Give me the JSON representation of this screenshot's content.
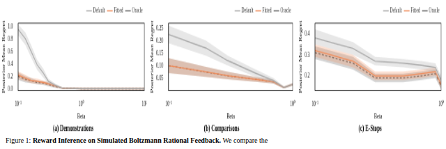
{
  "caption": {
    "prefix": "Figure 1:",
    "title": "Reward Inference on Simulated Boltzmann Rational Feedback.",
    "text": "We compare the"
  },
  "chart_data": [
    {
      "type": "line",
      "title": "(a) Demonstrations",
      "x_label": "Beta",
      "y_label": "Posterior Mean Regret",
      "log": "x",
      "grid": false,
      "legend": "top right",
      "xlim": [
        0.1,
        10
      ],
      "xticks": [
        {
          "value": 0.1,
          "label": "10⁻¹"
        },
        {
          "value": 1,
          "label": "10⁰"
        },
        {
          "value": 10,
          "label": "10¹"
        }
      ],
      "ylim": [
        -0.03,
        1.05
      ],
      "yticks": [
        {
          "value": 0,
          "label": "0.0"
        },
        {
          "value": 0.2,
          "label": "0.2"
        },
        {
          "value": 0.4,
          "label": "0.4"
        },
        {
          "value": 0.6,
          "label": "0.6"
        },
        {
          "value": 0.8,
          "label": "0.8"
        },
        {
          "value": 1,
          "label": "1.0"
        }
      ],
      "x": [
        0.1,
        0.13,
        0.16,
        0.2,
        0.25,
        0.3,
        0.4,
        0.5,
        1,
        2,
        5,
        10
      ],
      "series": [
        {
          "name": "Default",
          "color": "#aaaaaa",
          "line_style": "solid",
          "values": [
            0.95,
            0.8,
            0.6,
            0.38,
            0.25,
            0.12,
            0.05,
            0.01,
            0,
            0,
            0,
            0
          ],
          "lower": [
            0.85,
            0.7,
            0.5,
            0.3,
            0.18,
            0.08,
            0.03,
            0,
            0,
            0,
            0,
            0
          ],
          "upper": [
            1.03,
            0.9,
            0.7,
            0.46,
            0.32,
            0.16,
            0.07,
            0.02,
            0.01,
            0.01,
            0.01,
            0.01
          ]
        },
        {
          "name": "Fitted",
          "color": "#f08c5a",
          "line_style": "solid",
          "values": [
            0.22,
            0.17,
            0.13,
            0.12,
            0.1,
            0.08,
            0.04,
            0.01,
            0,
            0,
            0,
            0
          ],
          "lower": [
            0.16,
            0.12,
            0.09,
            0.08,
            0.07,
            0.05,
            0.02,
            0,
            0,
            0,
            0,
            0
          ],
          "upper": [
            0.28,
            0.22,
            0.17,
            0.16,
            0.13,
            0.11,
            0.06,
            0.02,
            0.01,
            0.01,
            0.01,
            0.01
          ]
        },
        {
          "name": "Oracle",
          "color": "#666666",
          "line_style": "dashed",
          "values": [
            0.2,
            0.15,
            0.13,
            0.1,
            0.09,
            0.07,
            0.03,
            0.01,
            0,
            0,
            0,
            0
          ],
          "lower": [
            0.14,
            0.1,
            0.09,
            0.07,
            0.06,
            0.04,
            0.01,
            0,
            0,
            0,
            0,
            0
          ],
          "upper": [
            0.26,
            0.2,
            0.17,
            0.13,
            0.12,
            0.1,
            0.05,
            0.02,
            0.01,
            0.01,
            0.01,
            0.01
          ]
        }
      ]
    },
    {
      "type": "line",
      "title": "(b) Comparisons",
      "x_label": "Beta",
      "y_label": "Posterior Mean Regret",
      "log": "x",
      "grid": false,
      "legend": "top right",
      "xlim": [
        0.1,
        1
      ],
      "xticks": [
        {
          "value": 0.1,
          "label": "10⁻¹"
        },
        {
          "value": 1,
          "label": "10⁰"
        }
      ],
      "ylim": [
        0,
        0.27
      ],
      "yticks": [
        0.05,
        {
          "value": 0.1,
          "label": "0.10"
        },
        0.15,
        {
          "value": 0.2,
          "label": "0.20"
        },
        0.25
      ],
      "x": [
        0.1,
        0.2,
        0.3,
        0.5,
        0.7,
        0.85,
        1
      ],
      "series": [
        {
          "name": "Default",
          "color": "#aaaaaa",
          "line_style": "solid",
          "values": [
            0.225,
            0.17,
            0.12,
            0.07,
            0.04,
            0.012,
            0.025
          ],
          "lower": [
            0.19,
            0.14,
            0.1,
            0.055,
            0.03,
            0.008,
            0.02
          ],
          "upper": [
            0.26,
            0.2,
            0.14,
            0.085,
            0.05,
            0.016,
            0.03
          ]
        },
        {
          "name": "Fitted",
          "color": "#f08c5a",
          "line_style": "solid",
          "values": [
            0.1,
            0.075,
            0.06,
            0.045,
            0.035,
            0.012,
            0.025
          ],
          "lower": [
            0.07,
            0.055,
            0.045,
            0.035,
            0.028,
            0.008,
            0.02
          ],
          "upper": [
            0.13,
            0.095,
            0.075,
            0.055,
            0.042,
            0.016,
            0.03
          ]
        },
        {
          "name": "Oracle",
          "color": "#666666",
          "line_style": "dashed",
          "values": [
            0.1,
            0.074,
            0.059,
            0.045,
            0.035,
            0.012,
            0.025
          ],
          "lower": [
            0.07,
            0.055,
            0.045,
            0.035,
            0.028,
            0.008,
            0.02
          ],
          "upper": [
            0.13,
            0.095,
            0.075,
            0.055,
            0.042,
            0.016,
            0.03
          ]
        }
      ]
    },
    {
      "type": "line",
      "title": "(c) E-Stops",
      "x_label": "Beta",
      "y_label": "Posterior Mean Regret",
      "log": "x",
      "grid": false,
      "legend": "top right",
      "xlim": [
        0.1,
        1
      ],
      "xticks": [
        {
          "value": 0.1,
          "label": "10⁻¹"
        },
        {
          "value": 1,
          "label": "10⁰"
        }
      ],
      "ylim": [
        0.13,
        0.45
      ],
      "yticks": [
        0.2,
        0.3,
        0.4
      ],
      "x": [
        0.1,
        0.2,
        0.3,
        0.5,
        0.7,
        0.9,
        1
      ],
      "series": [
        {
          "name": "Default",
          "color": "#aaaaaa",
          "line_style": "solid",
          "values": [
            0.38,
            0.33,
            0.27,
            0.26,
            0.25,
            0.24,
            0.18
          ],
          "lower": [
            0.35,
            0.3,
            0.25,
            0.24,
            0.23,
            0.22,
            0.16
          ],
          "upper": [
            0.42,
            0.36,
            0.29,
            0.28,
            0.27,
            0.26,
            0.2
          ]
        },
        {
          "name": "Fitted",
          "color": "#f08c5a",
          "line_style": "solid",
          "values": [
            0.32,
            0.27,
            0.2,
            0.2,
            0.21,
            0.22,
            0.16
          ],
          "lower": [
            0.29,
            0.24,
            0.18,
            0.18,
            0.19,
            0.2,
            0.14
          ],
          "upper": [
            0.35,
            0.3,
            0.22,
            0.22,
            0.23,
            0.24,
            0.18
          ]
        },
        {
          "name": "Oracle",
          "color": "#666666",
          "line_style": "dashed",
          "values": [
            0.31,
            0.26,
            0.19,
            0.19,
            0.2,
            0.21,
            0.15
          ],
          "lower": [
            0.28,
            0.23,
            0.17,
            0.17,
            0.18,
            0.19,
            0.135
          ],
          "upper": [
            0.34,
            0.29,
            0.21,
            0.21,
            0.22,
            0.23,
            0.17
          ]
        }
      ]
    }
  ]
}
